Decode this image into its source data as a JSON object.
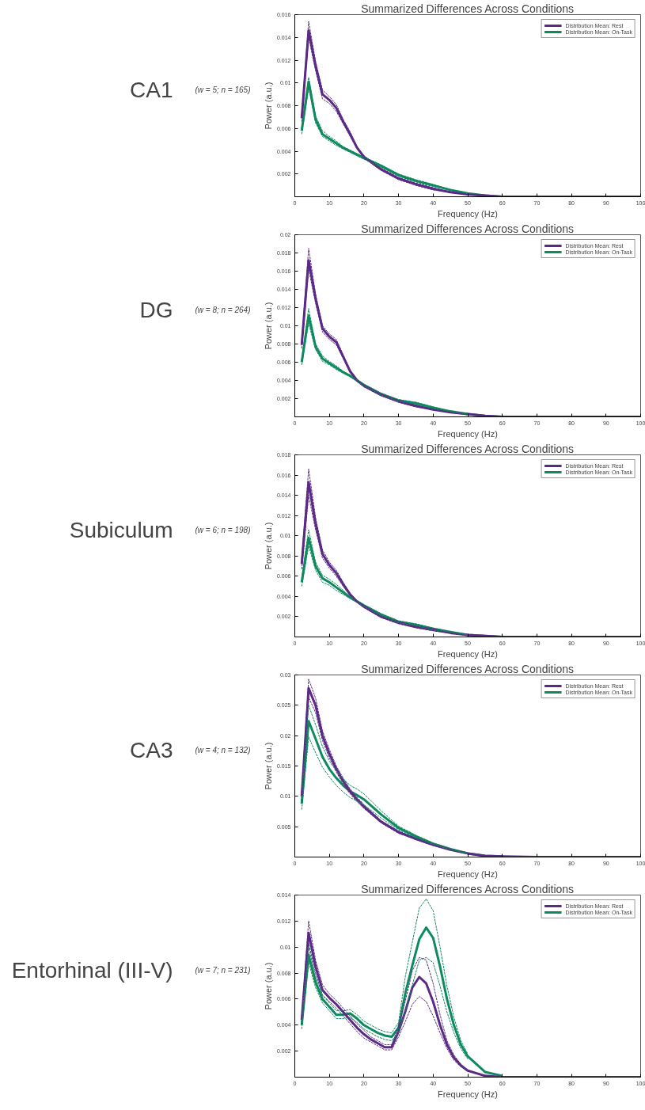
{
  "chart_data": [
    {
      "type": "line",
      "title": "Summarized Differences Across Conditions",
      "xlabel": "Frequency (Hz)",
      "ylabel": "Power (a.u.)",
      "annotations": [
        "CA1",
        "(w = 5; n = 165)"
      ],
      "legend": "top right",
      "grid": false,
      "xlim": [
        0,
        100
      ],
      "xticks": [
        0,
        10,
        20,
        30,
        40,
        50,
        60,
        70,
        80,
        90,
        100
      ],
      "ylim": [
        0,
        0.016
      ],
      "yticks": [
        0.002,
        0.004,
        0.006,
        0.008,
        0.01,
        0.012,
        0.014,
        0.016
      ],
      "x": [
        2,
        4,
        6,
        8,
        10,
        12,
        14,
        16,
        18,
        20,
        25,
        30,
        35,
        40,
        45,
        50,
        55,
        60,
        70,
        80,
        90,
        100
      ],
      "series": [
        {
          "name": "Distribution Mean: Rest",
          "color": "#5b2a86",
          "line_style": "solid",
          "values": [
            0.0069,
            0.0146,
            0.0115,
            0.009,
            0.0085,
            0.0078,
            0.0066,
            0.0055,
            0.0043,
            0.0035,
            0.0024,
            0.0016,
            0.0011,
            0.0007,
            0.0004,
            0.0002,
            0.0001,
            0,
            0,
            0,
            0,
            0
          ]
        },
        {
          "name": "Distribution Mean: On-Task",
          "color": "#0f8a5f",
          "line_style": "solid",
          "values": [
            0.0058,
            0.0101,
            0.0068,
            0.0055,
            0.0051,
            0.0047,
            0.0043,
            0.004,
            0.0037,
            0.0034,
            0.0027,
            0.0019,
            0.0014,
            0.001,
            0.0006,
            0.0003,
            0.0001,
            0,
            null,
            null,
            null,
            null
          ]
        },
        {
          "color": "#5b2a86",
          "line_style": "dashed",
          "values": [
            0.0066,
            0.014,
            0.0111,
            0.0086,
            0.0082,
            0.0075,
            0.0064,
            0.0053,
            0.0042,
            0.0034,
            0.0023,
            0.0015,
            0.001,
            0.0006,
            0.0004,
            0.0002,
            null,
            null,
            null,
            null,
            null,
            null
          ]
        },
        {
          "color": "#5b2a86",
          "line_style": "dashed",
          "values": [
            0.0072,
            0.0154,
            0.0119,
            0.0094,
            0.0088,
            0.0081,
            0.0068,
            0.0057,
            0.0044,
            0.0036,
            0.0025,
            0.0017,
            0.0012,
            0.0008,
            0.0004,
            0.0002,
            null,
            null,
            null,
            null,
            null,
            null
          ]
        },
        {
          "color": "#0f8a5f",
          "line_style": "dashed",
          "values": [
            0.0055,
            0.0096,
            0.0065,
            0.0053,
            0.0049,
            0.0045,
            0.0042,
            0.0039,
            0.0036,
            0.0033,
            0.0026,
            0.0018,
            0.0013,
            0.0009,
            0.0006,
            0.0003,
            null,
            null,
            null,
            null,
            null,
            null
          ]
        },
        {
          "color": "#0f8a5f",
          "line_style": "dashed",
          "values": [
            0.0061,
            0.0105,
            0.0071,
            0.0058,
            0.0053,
            0.0049,
            0.0044,
            0.0041,
            0.0038,
            0.0035,
            0.0028,
            0.002,
            0.0015,
            0.0011,
            0.0006,
            0.0003,
            null,
            null,
            null,
            null,
            null,
            null
          ]
        }
      ]
    },
    {
      "type": "line",
      "title": "Summarized Differences Across Conditions",
      "xlabel": "Frequency (Hz)",
      "ylabel": "Power (a.u.)",
      "annotations": [
        "DG",
        "(w = 8; n = 264)"
      ],
      "legend": "top right",
      "grid": false,
      "xlim": [
        0,
        100
      ],
      "xticks": [
        0,
        10,
        20,
        30,
        40,
        50,
        60,
        70,
        80,
        90,
        100
      ],
      "ylim": [
        0,
        0.02
      ],
      "yticks": [
        0.002,
        0.004,
        0.006,
        0.008,
        0.01,
        0.012,
        0.014,
        0.016,
        0.018,
        0.02
      ],
      "x": [
        2,
        4,
        6,
        8,
        10,
        12,
        14,
        16,
        18,
        20,
        25,
        30,
        35,
        40,
        45,
        50,
        55,
        60,
        70,
        80,
        90,
        100
      ],
      "series": [
        {
          "name": "Distribution Mean: Rest",
          "color": "#5b2a86",
          "line_style": "solid",
          "values": [
            0.0079,
            0.0172,
            0.013,
            0.0097,
            0.0088,
            0.0082,
            0.0066,
            0.005,
            0.004,
            0.0034,
            0.0024,
            0.0017,
            0.0012,
            0.0008,
            0.0005,
            0.0003,
            0.0001,
            0,
            0,
            0,
            0,
            0
          ]
        },
        {
          "name": "Distribution Mean: On-Task",
          "color": "#0f8a5f",
          "line_style": "solid",
          "values": [
            0.006,
            0.0111,
            0.0077,
            0.0064,
            0.0059,
            0.0054,
            0.0049,
            0.0045,
            0.004,
            0.0035,
            0.0025,
            0.0018,
            0.0015,
            0.001,
            0.0006,
            0.0003,
            0.0001,
            0,
            null,
            null,
            null,
            null
          ]
        },
        {
          "color": "#5b2a86",
          "line_style": "dashed",
          "values": [
            0.0075,
            0.0162,
            0.0125,
            0.0093,
            0.0085,
            0.0079,
            0.0064,
            0.0049,
            0.0039,
            0.0033,
            0.0023,
            0.0016,
            0.0011,
            0.0008,
            0.0005,
            0.0003,
            null,
            null,
            null,
            null,
            null,
            null
          ]
        },
        {
          "color": "#5b2a86",
          "line_style": "dashed",
          "values": [
            0.0083,
            0.0185,
            0.0135,
            0.01,
            0.0091,
            0.0085,
            0.0068,
            0.0051,
            0.0041,
            0.0035,
            0.0025,
            0.0018,
            0.0013,
            0.0008,
            0.0005,
            0.0003,
            null,
            null,
            null,
            null,
            null,
            null
          ]
        },
        {
          "color": "#0f8a5f",
          "line_style": "dashed",
          "values": [
            0.0057,
            0.0103,
            0.0074,
            0.0061,
            0.0057,
            0.0052,
            0.0048,
            0.0044,
            0.0039,
            0.0034,
            0.0024,
            0.0017,
            0.0014,
            0.0009,
            0.0006,
            0.0003,
            null,
            null,
            null,
            null,
            null,
            null
          ]
        },
        {
          "color": "#0f8a5f",
          "line_style": "dashed",
          "values": [
            0.0063,
            0.0119,
            0.008,
            0.0067,
            0.0061,
            0.0056,
            0.005,
            0.0046,
            0.0041,
            0.0036,
            0.0026,
            0.0019,
            0.0016,
            0.0011,
            0.0006,
            0.0003,
            null,
            null,
            null,
            null,
            null,
            null
          ]
        }
      ]
    },
    {
      "type": "line",
      "title": "Summarized Differences Across Conditions",
      "xlabel": "Frequency (Hz)",
      "ylabel": "Power (a.u.)",
      "annotations": [
        "Subiculum",
        "(w = 6; n = 198)"
      ],
      "legend": "top right",
      "grid": false,
      "xlim": [
        0,
        100
      ],
      "xticks": [
        0,
        10,
        20,
        30,
        40,
        50,
        60,
        70,
        80,
        90,
        100
      ],
      "ylim": [
        0,
        0.018
      ],
      "yticks": [
        0.002,
        0.004,
        0.006,
        0.008,
        0.01,
        0.012,
        0.014,
        0.016,
        0.018
      ],
      "x": [
        2,
        4,
        6,
        8,
        10,
        12,
        14,
        16,
        18,
        20,
        25,
        30,
        35,
        40,
        45,
        50,
        55,
        60,
        70,
        80,
        90,
        100
      ],
      "series": [
        {
          "name": "Distribution Mean: Rest",
          "color": "#5b2a86",
          "line_style": "solid",
          "values": [
            0.0072,
            0.0153,
            0.0112,
            0.0082,
            0.0071,
            0.0063,
            0.0052,
            0.0042,
            0.0035,
            0.003,
            0.002,
            0.0014,
            0.001,
            0.0007,
            0.0004,
            0.0002,
            0.0001,
            0,
            0,
            0,
            0,
            0
          ]
        },
        {
          "name": "Distribution Mean: On-Task",
          "color": "#0f8a5f",
          "line_style": "solid",
          "values": [
            0.0054,
            0.0098,
            0.007,
            0.0058,
            0.0054,
            0.0049,
            0.0044,
            0.0039,
            0.0035,
            0.0031,
            0.0022,
            0.0015,
            0.0012,
            0.0008,
            0.0005,
            0.0002,
            0.0001,
            0,
            null,
            null,
            null,
            null
          ]
        },
        {
          "color": "#5b2a86",
          "line_style": "dashed",
          "values": [
            0.0067,
            0.014,
            0.0106,
            0.0078,
            0.0068,
            0.006,
            0.005,
            0.0041,
            0.0034,
            0.0029,
            0.0019,
            0.0013,
            0.0009,
            0.0006,
            0.0004,
            0.0002,
            null,
            null,
            null,
            null,
            null,
            null
          ]
        },
        {
          "color": "#5b2a86",
          "line_style": "dashed",
          "values": [
            0.0077,
            0.0166,
            0.0118,
            0.0086,
            0.0074,
            0.0066,
            0.0054,
            0.0043,
            0.0036,
            0.0031,
            0.0021,
            0.0015,
            0.0011,
            0.0008,
            0.0004,
            0.0002,
            null,
            null,
            null,
            null,
            null,
            null
          ]
        },
        {
          "color": "#0f8a5f",
          "line_style": "dashed",
          "values": [
            0.005,
            0.009,
            0.0066,
            0.0054,
            0.0051,
            0.0046,
            0.0042,
            0.0038,
            0.0034,
            0.003,
            0.0021,
            0.0014,
            0.0011,
            0.0007,
            0.0005,
            0.0002,
            null,
            null,
            null,
            null,
            null,
            null
          ]
        },
        {
          "color": "#0f8a5f",
          "line_style": "dashed",
          "values": [
            0.0058,
            0.0106,
            0.0074,
            0.0061,
            0.0057,
            0.0052,
            0.0046,
            0.004,
            0.0036,
            0.0032,
            0.0023,
            0.0016,
            0.0013,
            0.0009,
            0.0005,
            0.0002,
            null,
            null,
            null,
            null,
            null,
            null
          ]
        }
      ]
    },
    {
      "type": "line",
      "title": "Summarized Differences Across Conditions",
      "xlabel": "Frequency (Hz)",
      "ylabel": "Power (a.u.)",
      "annotations": [
        "CA3",
        "(w = 4; n = 132)"
      ],
      "legend": "top right",
      "grid": false,
      "xlim": [
        0,
        100
      ],
      "xticks": [
        0,
        10,
        20,
        30,
        40,
        50,
        60,
        70,
        80,
        90,
        100
      ],
      "ylim": [
        0,
        0.03
      ],
      "yticks": [
        0.005,
        0.01,
        0.015,
        0.02,
        0.025,
        0.03
      ],
      "x": [
        2,
        4,
        6,
        8,
        10,
        12,
        14,
        16,
        18,
        20,
        25,
        30,
        35,
        40,
        45,
        50,
        55,
        60,
        70,
        80,
        90,
        100
      ],
      "series": [
        {
          "name": "Distribution Mean: Rest",
          "color": "#5b2a86",
          "line_style": "solid",
          "values": [
            0.01,
            0.0278,
            0.025,
            0.02,
            0.017,
            0.0145,
            0.0125,
            0.0108,
            0.0095,
            0.0083,
            0.0058,
            0.0041,
            0.003,
            0.002,
            0.0012,
            0.0006,
            0.0002,
            0.0001,
            0,
            0,
            0,
            0
          ]
        },
        {
          "name": "Distribution Mean: On-Task",
          "color": "#0f8a5f",
          "line_style": "solid",
          "values": [
            0.0088,
            0.0224,
            0.0195,
            0.0165,
            0.0145,
            0.013,
            0.0118,
            0.0108,
            0.0102,
            0.0095,
            0.007,
            0.0048,
            0.0034,
            0.0022,
            0.0013,
            0.0006,
            0.0002,
            0.0001,
            null,
            null,
            null,
            null
          ]
        },
        {
          "color": "#5b2a86",
          "line_style": "dashed",
          "values": [
            0.0092,
            0.0263,
            0.0238,
            0.0192,
            0.0163,
            0.014,
            0.012,
            0.0104,
            0.0091,
            0.008,
            0.0056,
            0.0039,
            0.0029,
            0.0019,
            0.0012,
            0.0006,
            null,
            null,
            null,
            null,
            null,
            null
          ]
        },
        {
          "color": "#5b2a86",
          "line_style": "dashed",
          "values": [
            0.0108,
            0.0293,
            0.0262,
            0.0208,
            0.0177,
            0.015,
            0.013,
            0.0112,
            0.0099,
            0.0086,
            0.006,
            0.0043,
            0.0031,
            0.0021,
            0.0012,
            0.0006,
            null,
            null,
            null,
            null,
            null,
            null
          ]
        },
        {
          "color": "#0f8a5f",
          "line_style": "dashed",
          "values": [
            0.0078,
            0.0198,
            0.0172,
            0.0148,
            0.0132,
            0.0118,
            0.0107,
            0.0098,
            0.0092,
            0.0086,
            0.0064,
            0.0045,
            0.0032,
            0.0021,
            0.0012,
            0.0006,
            null,
            null,
            null,
            null,
            null,
            null
          ]
        },
        {
          "color": "#0f8a5f",
          "line_style": "dashed",
          "values": [
            0.0098,
            0.025,
            0.0218,
            0.0182,
            0.0158,
            0.0142,
            0.0129,
            0.0118,
            0.0112,
            0.0104,
            0.0076,
            0.0051,
            0.0036,
            0.0023,
            0.0014,
            0.0006,
            null,
            null,
            null,
            null,
            null,
            null
          ]
        }
      ]
    },
    {
      "type": "line",
      "title": "Summarized Differences Across Conditions",
      "xlabel": "Frequency (Hz)",
      "ylabel": "Power (a.u.)",
      "annotations": [
        "Entorhinal (III-V)",
        "(w = 7; n = 231)"
      ],
      "legend": "top right",
      "grid": false,
      "xlim": [
        0,
        100
      ],
      "xticks": [
        0,
        10,
        20,
        30,
        40,
        50,
        60,
        70,
        80,
        90,
        100
      ],
      "ylim": [
        0,
        0.014
      ],
      "yticks": [
        0.002,
        0.004,
        0.006,
        0.008,
        0.01,
        0.012,
        0.014
      ],
      "x": [
        2,
        4,
        6,
        8,
        10,
        12,
        14,
        16,
        18,
        20,
        22,
        24,
        26,
        28,
        30,
        32,
        34,
        36,
        38,
        40,
        42,
        44,
        46,
        48,
        50,
        55,
        60,
        70,
        80,
        90,
        100
      ],
      "series": [
        {
          "name": "Distribution Mean: Rest",
          "color": "#5b2a86",
          "line_style": "solid",
          "values": [
            0.0044,
            0.0111,
            0.0085,
            0.0067,
            0.0061,
            0.0056,
            0.005,
            0.0044,
            0.0038,
            0.0033,
            0.0029,
            0.0026,
            0.0023,
            0.0023,
            0.0035,
            0.0051,
            0.0069,
            0.0077,
            0.0072,
            0.0058,
            0.004,
            0.0025,
            0.0015,
            0.0009,
            0.0005,
            0.0001,
            0,
            0,
            0,
            0,
            0
          ]
        },
        {
          "name": "Distribution Mean: On-Task",
          "color": "#0f8a5f",
          "line_style": "solid",
          "values": [
            0.004,
            0.0094,
            0.0073,
            0.006,
            0.0054,
            0.0048,
            0.0048,
            0.0049,
            0.0045,
            0.004,
            0.0037,
            0.0034,
            0.0032,
            0.0031,
            0.0038,
            0.0065,
            0.0086,
            0.0106,
            0.0115,
            0.0107,
            0.0085,
            0.006,
            0.004,
            0.0025,
            0.0016,
            0.0004,
            0.0001,
            null,
            null,
            null,
            null
          ]
        },
        {
          "color": "#5b2a86",
          "line_style": "dashed",
          "values": [
            0.0041,
            0.0103,
            0.008,
            0.0063,
            0.0058,
            0.0053,
            0.0047,
            0.0041,
            0.0035,
            0.003,
            0.0027,
            0.0024,
            0.0021,
            0.0021,
            0.0031,
            0.0043,
            0.0056,
            0.0062,
            0.0058,
            0.0047,
            0.0034,
            0.0022,
            0.0013,
            0.0008,
            0.0005,
            null,
            null,
            null,
            null,
            null,
            null
          ]
        },
        {
          "color": "#5b2a86",
          "line_style": "dashed",
          "values": [
            0.0047,
            0.012,
            0.009,
            0.0071,
            0.0064,
            0.0059,
            0.0053,
            0.0047,
            0.0041,
            0.0036,
            0.0031,
            0.0028,
            0.0025,
            0.0025,
            0.0039,
            0.0059,
            0.0082,
            0.0092,
            0.009,
            0.0072,
            0.0048,
            0.0028,
            0.0017,
            0.001,
            0.0005,
            null,
            null,
            null,
            null,
            null,
            null
          ]
        },
        {
          "color": "#0f8a5f",
          "line_style": "dashed",
          "values": [
            0.0037,
            0.0088,
            0.0069,
            0.0057,
            0.0051,
            0.0045,
            0.0045,
            0.0046,
            0.0042,
            0.0037,
            0.0034,
            0.0031,
            0.0029,
            0.0028,
            0.0034,
            0.0052,
            0.0071,
            0.009,
            0.0092,
            0.0088,
            0.007,
            0.005,
            0.0034,
            0.0022,
            0.0014,
            null,
            null,
            null,
            null,
            null,
            null
          ]
        },
        {
          "color": "#0f8a5f",
          "line_style": "dashed",
          "values": [
            0.0043,
            0.01,
            0.0077,
            0.0063,
            0.0057,
            0.0051,
            0.0051,
            0.0052,
            0.0048,
            0.0043,
            0.004,
            0.0037,
            0.0035,
            0.0034,
            0.0042,
            0.0078,
            0.0104,
            0.013,
            0.0137,
            0.0128,
            0.01,
            0.007,
            0.0046,
            0.0028,
            0.0018,
            null,
            null,
            null,
            null,
            null,
            null
          ]
        }
      ]
    }
  ]
}
